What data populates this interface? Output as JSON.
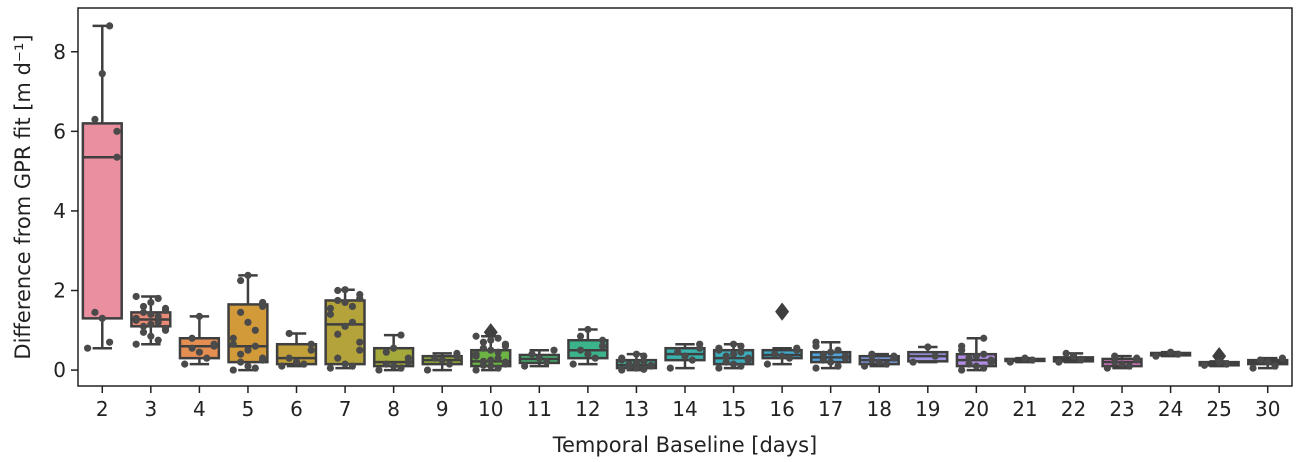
{
  "chart_data": {
    "type": "box",
    "title": "",
    "xlabel": "Temporal Baseline [days]",
    "ylabel": "Difference from GPR fit [m d⁻¹]",
    "ylim": [
      -0.4,
      9.1
    ],
    "yticks": [
      0,
      2,
      4,
      6,
      8
    ],
    "grid": false,
    "legend": "none",
    "categories": [
      "2",
      "3",
      "4",
      "5",
      "6",
      "7",
      "8",
      "9",
      "10",
      "11",
      "12",
      "13",
      "14",
      "15",
      "16",
      "17",
      "18",
      "19",
      "20",
      "21",
      "22",
      "23",
      "24",
      "25",
      "30"
    ],
    "colors": [
      "#ea8fa0",
      "#e88a77",
      "#e58e52",
      "#d39a3a",
      "#c2a03a",
      "#b4a23a",
      "#a5a83a",
      "#93ad3a",
      "#6cb443",
      "#47b56f",
      "#3bb38b",
      "#3ab29c",
      "#3ab1ad",
      "#3baebe",
      "#3fa8cb",
      "#52a2dc",
      "#7b9ce4",
      "#9f95e6",
      "#b18ce3",
      "#c584e2",
      "#d47fd8",
      "#e07bca",
      "#e57fb9",
      "#e888ac",
      "#ea8ea0"
    ],
    "boxes": [
      {
        "category": "2",
        "whisker_low": 0.55,
        "q1": 1.3,
        "median": 5.35,
        "q3": 6.2,
        "whisker_high": 8.65,
        "outliers": [],
        "points": [
          0.55,
          0.7,
          1.3,
          1.45,
          5.35,
          6.0,
          6.3,
          7.45,
          8.65
        ]
      },
      {
        "category": "3",
        "whisker_low": 0.65,
        "q1": 1.1,
        "median": 1.27,
        "q3": 1.45,
        "whisker_high": 1.85,
        "outliers": [],
        "points": [
          0.65,
          0.75,
          0.85,
          0.95,
          1.0,
          1.05,
          1.1,
          1.15,
          1.2,
          1.25,
          1.3,
          1.35,
          1.4,
          1.45,
          1.5,
          1.55,
          1.6,
          1.7,
          1.8,
          1.85
        ]
      },
      {
        "category": "4",
        "whisker_low": 0.15,
        "q1": 0.3,
        "median": 0.6,
        "q3": 0.8,
        "whisker_high": 1.35,
        "outliers": [],
        "points": [
          0.15,
          0.3,
          0.45,
          0.55,
          0.6,
          0.65,
          0.8,
          1.35
        ]
      },
      {
        "category": "5",
        "whisker_low": 0.0,
        "q1": 0.2,
        "median": 0.6,
        "q3": 1.65,
        "whisker_high": 2.38,
        "outliers": [],
        "points": [
          0.0,
          0.05,
          0.1,
          0.2,
          0.25,
          0.3,
          0.4,
          0.5,
          0.6,
          0.65,
          0.8,
          1.0,
          1.2,
          1.45,
          1.6,
          1.7,
          2.25,
          2.38
        ]
      },
      {
        "category": "6",
        "whisker_low": 0.1,
        "q1": 0.15,
        "median": 0.3,
        "q3": 0.65,
        "whisker_high": 0.92,
        "outliers": [],
        "points": [
          0.1,
          0.15,
          0.2,
          0.3,
          0.5,
          0.65,
          0.92
        ]
      },
      {
        "category": "7",
        "whisker_low": 0.05,
        "q1": 0.15,
        "median": 1.15,
        "q3": 1.75,
        "whisker_high": 2.02,
        "outliers": [],
        "points": [
          0.05,
          0.1,
          0.15,
          0.3,
          0.5,
          0.7,
          0.9,
          1.1,
          1.2,
          1.4,
          1.55,
          1.6,
          1.7,
          1.75,
          1.8,
          1.9,
          2.0,
          2.02
        ]
      },
      {
        "category": "8",
        "whisker_low": 0.0,
        "q1": 0.1,
        "median": 0.2,
        "q3": 0.55,
        "whisker_high": 0.88,
        "outliers": [],
        "points": [
          0.0,
          0.05,
          0.1,
          0.15,
          0.2,
          0.3,
          0.45,
          0.55,
          0.88
        ]
      },
      {
        "category": "9",
        "whisker_low": 0.0,
        "q1": 0.15,
        "median": 0.25,
        "q3": 0.35,
        "whisker_high": 0.42,
        "outliers": [],
        "points": [
          0.0,
          0.15,
          0.25,
          0.3,
          0.35,
          0.42
        ]
      },
      {
        "category": "10",
        "whisker_low": 0.0,
        "q1": 0.1,
        "median": 0.22,
        "q3": 0.5,
        "whisker_high": 0.85,
        "outliers": [
          0.95
        ],
        "points": [
          0.0,
          0.05,
          0.1,
          0.12,
          0.15,
          0.2,
          0.22,
          0.25,
          0.3,
          0.35,
          0.4,
          0.45,
          0.5,
          0.55,
          0.6,
          0.65,
          0.7,
          0.75,
          0.8,
          0.85
        ]
      },
      {
        "category": "11",
        "whisker_low": 0.1,
        "q1": 0.18,
        "median": 0.28,
        "q3": 0.38,
        "whisker_high": 0.5,
        "outliers": [],
        "points": [
          0.1,
          0.2,
          0.3,
          0.4,
          0.5
        ]
      },
      {
        "category": "12",
        "whisker_low": 0.15,
        "q1": 0.3,
        "median": 0.5,
        "q3": 0.75,
        "whisker_high": 1.02,
        "outliers": [],
        "points": [
          0.15,
          0.3,
          0.4,
          0.5,
          0.6,
          0.75,
          0.85,
          1.02
        ]
      },
      {
        "category": "13",
        "whisker_low": 0.0,
        "q1": 0.05,
        "median": 0.12,
        "q3": 0.25,
        "whisker_high": 0.4,
        "outliers": [],
        "points": [
          0.0,
          0.02,
          0.05,
          0.08,
          0.1,
          0.12,
          0.15,
          0.18,
          0.2,
          0.25,
          0.3,
          0.35,
          0.4
        ]
      },
      {
        "category": "14",
        "whisker_low": 0.05,
        "q1": 0.25,
        "median": 0.4,
        "q3": 0.55,
        "whisker_high": 0.65,
        "outliers": [],
        "points": [
          0.05,
          0.25,
          0.35,
          0.45,
          0.55,
          0.65
        ]
      },
      {
        "category": "15",
        "whisker_low": 0.05,
        "q1": 0.15,
        "median": 0.3,
        "q3": 0.5,
        "whisker_high": 0.65,
        "outliers": [],
        "points": [
          0.05,
          0.1,
          0.15,
          0.2,
          0.25,
          0.3,
          0.35,
          0.4,
          0.45,
          0.5,
          0.55,
          0.6,
          0.65
        ]
      },
      {
        "category": "16",
        "whisker_low": 0.15,
        "q1": 0.3,
        "median": 0.38,
        "q3": 0.5,
        "whisker_high": 0.55,
        "outliers": [
          1.47
        ],
        "points": [
          0.15,
          0.3,
          0.35,
          0.4,
          0.5,
          0.55
        ]
      },
      {
        "category": "17",
        "whisker_low": 0.05,
        "q1": 0.2,
        "median": 0.32,
        "q3": 0.45,
        "whisker_high": 0.7,
        "outliers": [],
        "points": [
          0.05,
          0.1,
          0.2,
          0.25,
          0.3,
          0.35,
          0.4,
          0.45,
          0.5,
          0.6,
          0.7
        ]
      },
      {
        "category": "18",
        "whisker_low": 0.1,
        "q1": 0.15,
        "median": 0.25,
        "q3": 0.35,
        "whisker_high": 0.4,
        "outliers": [],
        "points": [
          0.1,
          0.15,
          0.2,
          0.25,
          0.3,
          0.35,
          0.4
        ]
      },
      {
        "category": "19",
        "whisker_low": 0.2,
        "q1": 0.22,
        "median": 0.35,
        "q3": 0.45,
        "whisker_high": 0.58,
        "outliers": [],
        "points": [
          0.2,
          0.35,
          0.58
        ]
      },
      {
        "category": "20",
        "whisker_low": 0.0,
        "q1": 0.1,
        "median": 0.25,
        "q3": 0.4,
        "whisker_high": 0.8,
        "outliers": [],
        "points": [
          0.0,
          0.05,
          0.1,
          0.15,
          0.2,
          0.25,
          0.3,
          0.35,
          0.4,
          0.5,
          0.6,
          0.8
        ]
      },
      {
        "category": "21",
        "whisker_low": 0.2,
        "q1": 0.23,
        "median": 0.25,
        "q3": 0.28,
        "whisker_high": 0.3,
        "outliers": [],
        "points": [
          0.2,
          0.25,
          0.3
        ]
      },
      {
        "category": "22",
        "whisker_low": 0.2,
        "q1": 0.22,
        "median": 0.27,
        "q3": 0.32,
        "whisker_high": 0.42,
        "outliers": [],
        "points": [
          0.2,
          0.27,
          0.35,
          0.42
        ]
      },
      {
        "category": "23",
        "whisker_low": 0.05,
        "q1": 0.1,
        "median": 0.2,
        "q3": 0.28,
        "whisker_high": 0.35,
        "outliers": [],
        "points": [
          0.05,
          0.1,
          0.15,
          0.2,
          0.25,
          0.3,
          0.35
        ]
      },
      {
        "category": "24",
        "whisker_low": 0.35,
        "q1": 0.37,
        "median": 0.4,
        "q3": 0.43,
        "whisker_high": 0.45,
        "outliers": [],
        "points": [
          0.35,
          0.4,
          0.45
        ]
      },
      {
        "category": "25",
        "whisker_low": 0.1,
        "q1": 0.12,
        "median": 0.15,
        "q3": 0.2,
        "whisker_high": 0.22,
        "outliers": [
          0.35
        ],
        "points": [
          0.12,
          0.15,
          0.2
        ]
      },
      {
        "category": "30",
        "whisker_low": 0.05,
        "q1": 0.15,
        "median": 0.2,
        "q3": 0.25,
        "whisker_high": 0.3,
        "outliers": [],
        "points": [
          0.05,
          0.1,
          0.2,
          0.25,
          0.3
        ]
      }
    ]
  }
}
